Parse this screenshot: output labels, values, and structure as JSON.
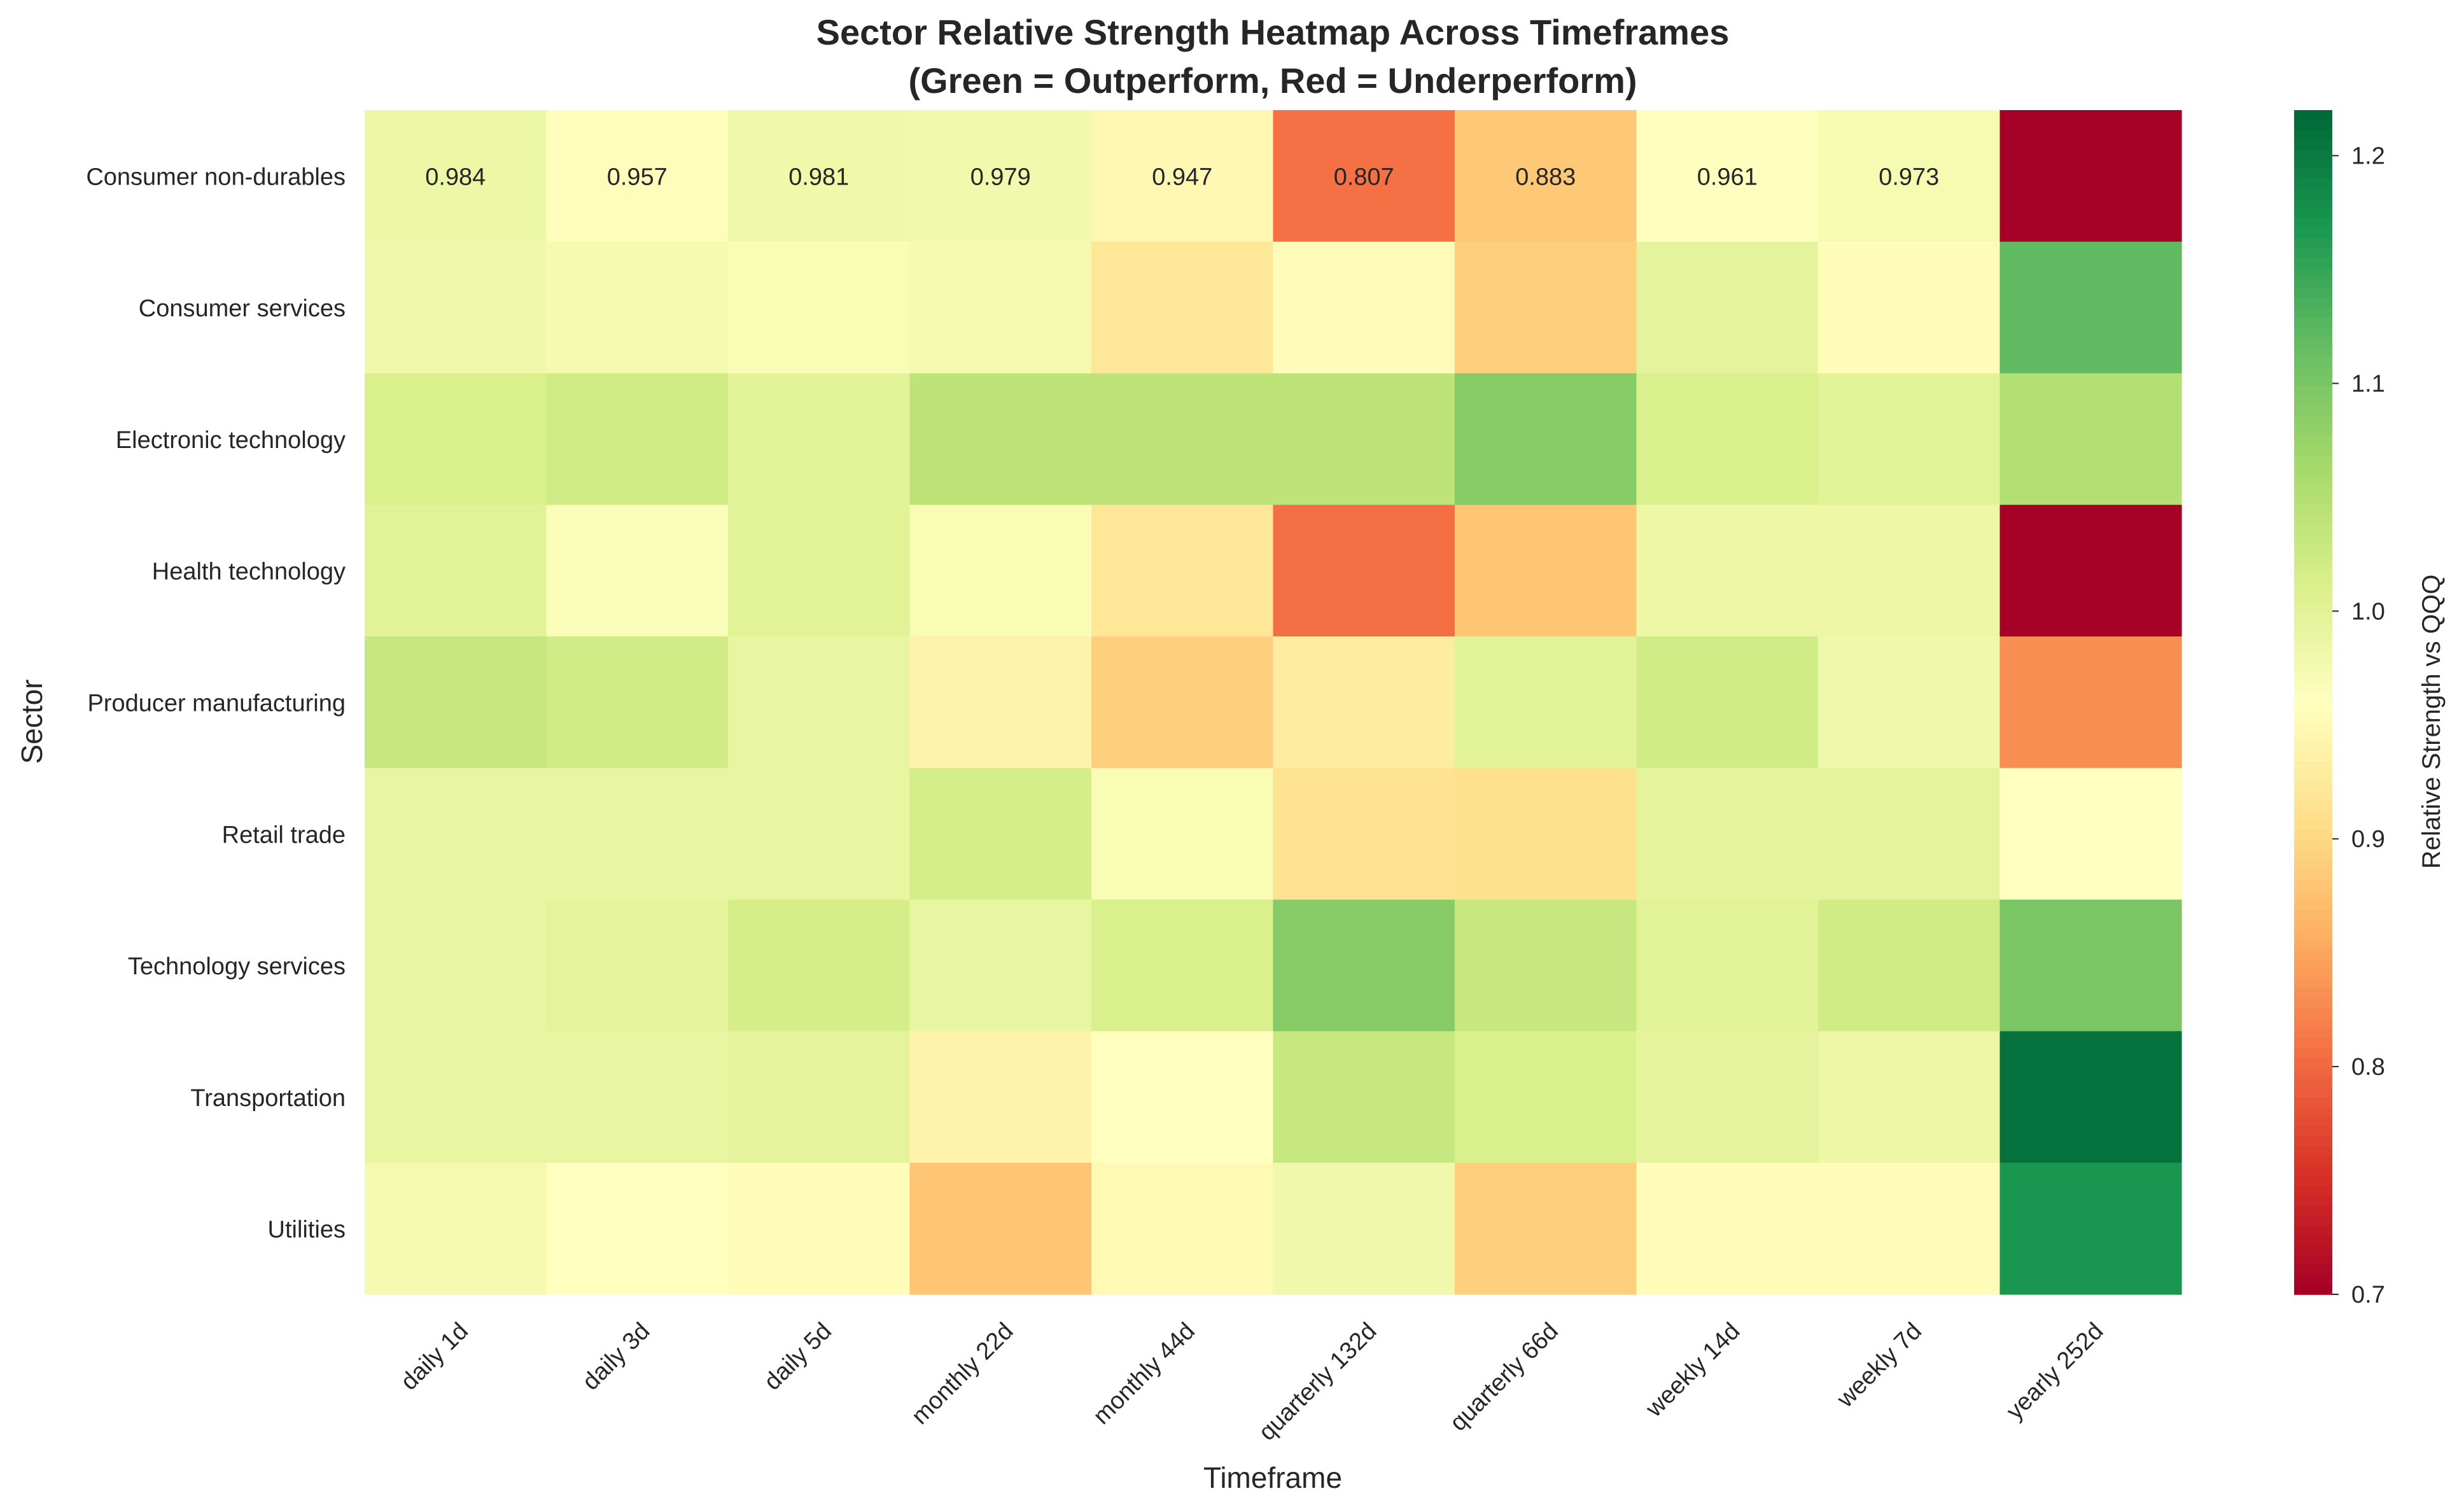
{
  "chart_data": {
    "type": "heatmap",
    "title": "Sector Relative Strength Heatmap Across Timeframes",
    "subtitle": "(Green = Outperform, Red = Underperform)",
    "xlabel": "Timeframe",
    "ylabel": "Sector",
    "colorbar_label": "Relative Strength vs QQQ",
    "colormap": "RdYlGn",
    "color_range": [
      0.7,
      1.22
    ],
    "colorbar_ticks": [
      "0.7",
      "0.8",
      "0.9",
      "1.0",
      "1.1",
      "1.2"
    ],
    "columns": [
      "daily 1d",
      "daily 3d",
      "daily 5d",
      "monthly 22d",
      "monthly 44d",
      "quarterly 132d",
      "quarterly 66d",
      "weekly 14d",
      "weekly 7d",
      "yearly 252d"
    ],
    "rows": [
      "Consumer non-durables",
      "Consumer services",
      "Electronic technology",
      "Health technology",
      "Producer manufacturing",
      "Retail trade",
      "Technology services",
      "Transportation",
      "Utilities"
    ],
    "values": [
      [
        0.984,
        0.957,
        0.981,
        0.979,
        0.947,
        0.807,
        0.883,
        0.961,
        0.973,
        0.695
      ],
      [
        0.98,
        0.975,
        0.97,
        0.975,
        0.92,
        0.955,
        0.89,
        0.995,
        0.955,
        1.12
      ],
      [
        1.01,
        1.02,
        1.0,
        1.04,
        1.04,
        1.04,
        1.09,
        1.01,
        1.0,
        1.05
      ],
      [
        1.0,
        0.965,
        1.0,
        0.97,
        0.92,
        0.805,
        0.88,
        0.985,
        0.985,
        0.695
      ],
      [
        1.03,
        1.02,
        0.99,
        0.94,
        0.89,
        0.93,
        1.0,
        1.02,
        0.98,
        0.83
      ],
      [
        0.99,
        0.99,
        0.99,
        1.015,
        0.97,
        0.915,
        0.91,
        0.995,
        0.995,
        0.96
      ],
      [
        0.99,
        0.995,
        1.015,
        0.99,
        1.01,
        1.09,
        1.03,
        1.0,
        1.02,
        1.1
      ],
      [
        0.99,
        0.99,
        0.995,
        0.94,
        0.96,
        1.03,
        1.01,
        0.995,
        0.985,
        1.21
      ],
      [
        0.975,
        0.96,
        0.955,
        0.88,
        0.95,
        0.98,
        0.89,
        0.955,
        0.955,
        1.17
      ]
    ],
    "annotated_row": 0,
    "annotated_values": [
      "0.984",
      "0.957",
      "0.981",
      "0.979",
      "0.947",
      "0.807",
      "0.883",
      "0.961",
      "0.973",
      ""
    ],
    "legend": "colorbar right",
    "grid": false
  }
}
